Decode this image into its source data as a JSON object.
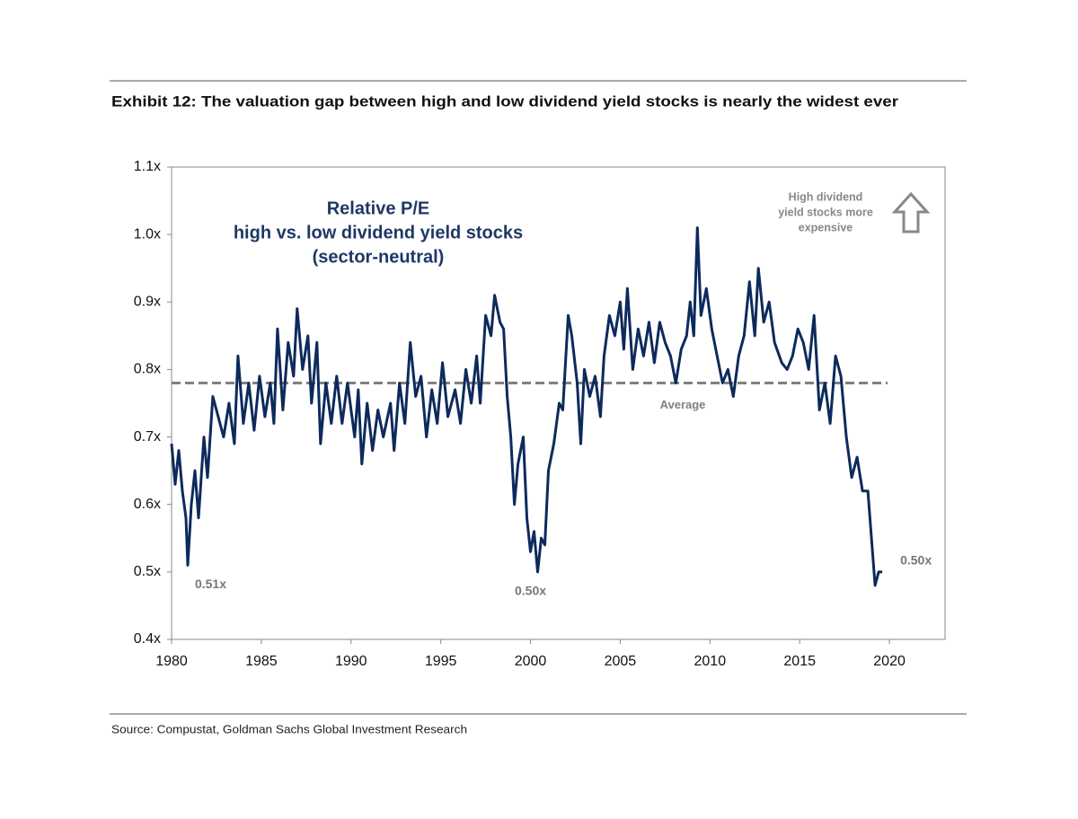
{
  "chart_data": {
    "type": "line",
    "title": "Exhibit 12: The valuation gap between high and low dividend yield stocks is nearly the widest ever",
    "inner_title": [
      "Relative P/E",
      "high vs. low dividend yield stocks",
      "(sector-neutral)"
    ],
    "source": "Source: Compustat, Goldman Sachs Global Investment Research",
    "arrow_note": [
      "High dividend",
      "yield stocks more",
      "expensive"
    ],
    "reference_line": {
      "value": 0.78,
      "label": "Average",
      "color": "#808080"
    },
    "annotations": [
      {
        "x": 1980.9,
        "y": 0.51,
        "label": "0.51x"
      },
      {
        "x": 2000.4,
        "y": 0.5,
        "label": "0.50x"
      },
      {
        "x": 2019.6,
        "y": 0.5,
        "label": "0.50x"
      }
    ],
    "xlim": [
      1980,
      2023.1
    ],
    "xticks": [
      1980,
      1985,
      1990,
      1995,
      2000,
      2005,
      2010,
      2015,
      2020
    ],
    "ylim": [
      0.4,
      1.1
    ],
    "yticks": [
      {
        "value": 0.4,
        "label": "0.4x"
      },
      {
        "value": 0.5,
        "label": "0.5x"
      },
      {
        "value": 0.6,
        "label": "0.6x"
      },
      {
        "value": 0.7,
        "label": "0.7x"
      },
      {
        "value": 0.8,
        "label": "0.8x"
      },
      {
        "value": 0.9,
        "label": "0.9x"
      },
      {
        "value": 1.0,
        "label": "1.0x"
      },
      {
        "value": 1.1,
        "label": "1.1x"
      }
    ],
    "grid": false,
    "color": "#0d2a5c",
    "x": [
      1980.0,
      1980.2,
      1980.4,
      1980.6,
      1980.8,
      1980.9,
      1981.1,
      1981.3,
      1981.5,
      1981.8,
      1982.0,
      1982.3,
      1982.6,
      1982.9,
      1983.2,
      1983.5,
      1983.7,
      1984.0,
      1984.3,
      1984.6,
      1984.9,
      1985.2,
      1985.5,
      1985.7,
      1985.9,
      1986.2,
      1986.5,
      1986.8,
      1987.0,
      1987.3,
      1987.6,
      1987.8,
      1988.1,
      1988.3,
      1988.6,
      1988.9,
      1989.2,
      1989.5,
      1989.8,
      1990.2,
      1990.4,
      1990.6,
      1990.9,
      1991.2,
      1991.5,
      1991.8,
      1992.2,
      1992.4,
      1992.7,
      1993.0,
      1993.3,
      1993.6,
      1993.9,
      1994.2,
      1994.5,
      1994.8,
      1995.1,
      1995.4,
      1995.8,
      1996.1,
      1996.4,
      1996.7,
      1997.0,
      1997.2,
      1997.5,
      1997.8,
      1998.0,
      1998.3,
      1998.5,
      1998.7,
      1998.9,
      1999.1,
      1999.3,
      1999.6,
      1999.8,
      2000.0,
      2000.2,
      2000.4,
      2000.6,
      2000.8,
      2001.0,
      2001.3,
      2001.6,
      2001.8,
      2002.1,
      2002.3,
      2002.6,
      2002.8,
      2003.0,
      2003.3,
      2003.6,
      2003.9,
      2004.1,
      2004.4,
      2004.7,
      2005.0,
      2005.2,
      2005.4,
      2005.7,
      2006.0,
      2006.3,
      2006.6,
      2006.9,
      2007.2,
      2007.5,
      2007.8,
      2008.1,
      2008.4,
      2008.7,
      2008.9,
      2009.1,
      2009.3,
      2009.5,
      2009.8,
      2010.1,
      2010.4,
      2010.7,
      2011.0,
      2011.3,
      2011.6,
      2011.9,
      2012.2,
      2012.5,
      2012.7,
      2013.0,
      2013.3,
      2013.6,
      2014.0,
      2014.3,
      2014.6,
      2014.9,
      2015.2,
      2015.5,
      2015.8,
      2016.1,
      2016.4,
      2016.7,
      2017.0,
      2017.3,
      2017.6,
      2017.9,
      2018.2,
      2018.5,
      2018.8,
      2019.0,
      2019.2,
      2019.4,
      2019.6
    ],
    "values": [
      0.69,
      0.63,
      0.68,
      0.62,
      0.58,
      0.51,
      0.6,
      0.65,
      0.58,
      0.7,
      0.64,
      0.76,
      0.73,
      0.7,
      0.75,
      0.69,
      0.82,
      0.72,
      0.78,
      0.71,
      0.79,
      0.73,
      0.78,
      0.72,
      0.86,
      0.74,
      0.84,
      0.79,
      0.89,
      0.8,
      0.85,
      0.75,
      0.84,
      0.69,
      0.78,
      0.72,
      0.79,
      0.72,
      0.78,
      0.7,
      0.77,
      0.66,
      0.75,
      0.68,
      0.74,
      0.7,
      0.75,
      0.68,
      0.78,
      0.72,
      0.84,
      0.76,
      0.79,
      0.7,
      0.77,
      0.72,
      0.81,
      0.73,
      0.77,
      0.72,
      0.8,
      0.75,
      0.82,
      0.75,
      0.88,
      0.85,
      0.91,
      0.87,
      0.86,
      0.76,
      0.7,
      0.6,
      0.66,
      0.7,
      0.58,
      0.53,
      0.56,
      0.5,
      0.55,
      0.54,
      0.65,
      0.69,
      0.75,
      0.74,
      0.88,
      0.85,
      0.78,
      0.69,
      0.8,
      0.76,
      0.79,
      0.73,
      0.82,
      0.88,
      0.85,
      0.9,
      0.83,
      0.92,
      0.8,
      0.86,
      0.82,
      0.87,
      0.81,
      0.87,
      0.84,
      0.82,
      0.78,
      0.83,
      0.85,
      0.9,
      0.85,
      1.01,
      0.88,
      0.92,
      0.86,
      0.82,
      0.78,
      0.8,
      0.76,
      0.82,
      0.85,
      0.93,
      0.85,
      0.95,
      0.87,
      0.9,
      0.84,
      0.81,
      0.8,
      0.82,
      0.86,
      0.84,
      0.8,
      0.88,
      0.74,
      0.78,
      0.72,
      0.82,
      0.79,
      0.7,
      0.64,
      0.67,
      0.62,
      0.62,
      0.55,
      0.48,
      0.5,
      0.5
    ]
  }
}
